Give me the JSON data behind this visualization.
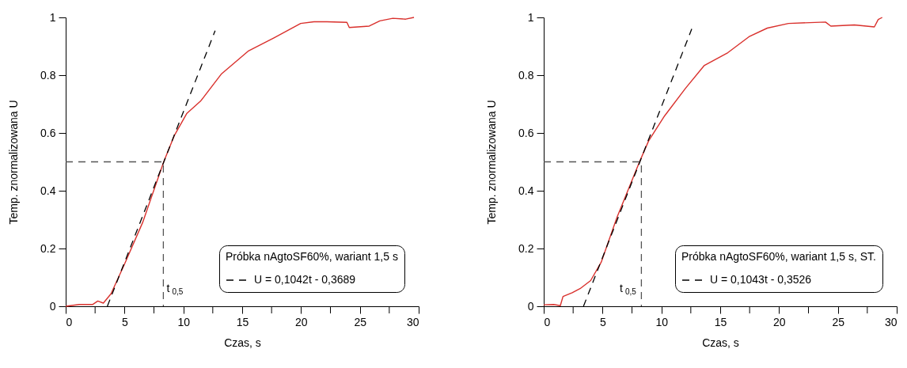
{
  "chart_data": [
    {
      "type": "line",
      "xlabel": "Czas, s",
      "ylabel": "Temp. znormalizowana U",
      "legend_title": "Próbka nAgtoSF60%, wariant 1,5 s",
      "legend": "bottom right",
      "grid": false,
      "marker": "none",
      "xlim": [
        0,
        30
      ],
      "ylim": [
        0,
        1
      ],
      "xticks": [
        0,
        {
          "value": 2.5,
          "label": null
        },
        5,
        {
          "value": 7.5,
          "label": null
        },
        10,
        {
          "value": 12.5,
          "label": null
        },
        15,
        {
          "value": 17.5,
          "label": null
        },
        20,
        {
          "value": 22.5,
          "label": null
        },
        25,
        {
          "value": 27.5,
          "label": null
        },
        30
      ],
      "yticks": [
        0,
        0.2,
        0.4,
        0.6,
        0.8,
        1
      ],
      "annotations": [
        "t$_{0,5}$"
      ],
      "series": [
        {
          "color": "#d9302c",
          "x": [
            0,
            1.16,
            2.28,
            2.73,
            3.2,
            3.85,
            4.97,
            6.54,
            8.33,
            9.22,
            10.3,
            11.46,
            13.25,
            15.5,
            17.7,
            19.97,
            21.1,
            22.2,
            23.9,
            24.1,
            25.8,
            26.7,
            27.8,
            28.9,
            29.6
          ],
          "values": [
            0,
            0.006,
            0.006,
            0.018,
            0.011,
            0.043,
            0.143,
            0.29,
            0.5,
            0.59,
            0.668,
            0.71,
            0.805,
            0.883,
            0.929,
            0.979,
            0.985,
            0.985,
            0.983,
            0.965,
            0.97,
            0.988,
            0.997,
            0.994,
            1
          ]
        },
        {
          "name": "U = 0,1042t - 0,3689",
          "color": "#000000",
          "line_style": "dashed",
          "x": [
            3.54,
            12.7
          ],
          "values": [
            0,
            0.954
          ]
        },
        {
          "color": "#555555",
          "line_style": "dashed",
          "x": [
            0,
            8.3,
            8.3
          ],
          "values": [
            0.5,
            0.5,
            0
          ]
        }
      ]
    },
    {
      "type": "line",
      "xlabel": "Czas, s",
      "ylabel": "Temp. znormalizowana U",
      "legend_title": "Próbka nAgtoSF60%, wariant 1,5 s, ST.",
      "legend": "bottom right",
      "grid": false,
      "marker": "none",
      "xlim": [
        0,
        30
      ],
      "ylim": [
        0,
        1
      ],
      "xticks": [
        0,
        {
          "value": 2.5,
          "label": null
        },
        5,
        {
          "value": 7.5,
          "label": null
        },
        10,
        {
          "value": 12.5,
          "label": null
        },
        15,
        {
          "value": 17.5,
          "label": null
        },
        20,
        {
          "value": 22.5,
          "label": null
        },
        25,
        {
          "value": 27.5,
          "label": null
        },
        30
      ],
      "yticks": [
        0,
        0.2,
        0.4,
        0.6,
        0.8,
        1
      ],
      "annotations": [
        "t$_{0,5}$"
      ],
      "series": [
        {
          "color": "#d9302c",
          "x": [
            0,
            0.85,
            1.41,
            1.64,
            2.42,
            3.09,
            3.99,
            4.89,
            6.23,
            8.14,
            8.92,
            10.27,
            12.06,
            13.63,
            15.65,
            17.44,
            19,
            20.8,
            23.95,
            24.4,
            26.4,
            28.1,
            28.43,
            28.77
          ],
          "values": [
            0.005,
            0.006,
            0.002,
            0.034,
            0.047,
            0.061,
            0.089,
            0.153,
            0.308,
            0.5,
            0.573,
            0.659,
            0.755,
            0.833,
            0.878,
            0.933,
            0.963,
            0.979,
            0.984,
            0.97,
            0.974,
            0.967,
            0.993,
            1
          ]
        },
        {
          "name": "U = 0,1043t - 0,3526",
          "color": "#000000",
          "line_style": "dashed",
          "x": [
            3.38,
            12.58
          ],
          "values": [
            0,
            0.96
          ]
        },
        {
          "color": "#555555",
          "line_style": "dashed",
          "x": [
            0,
            8.3,
            8.3
          ],
          "values": [
            0.5,
            0.5,
            0
          ]
        }
      ]
    }
  ]
}
